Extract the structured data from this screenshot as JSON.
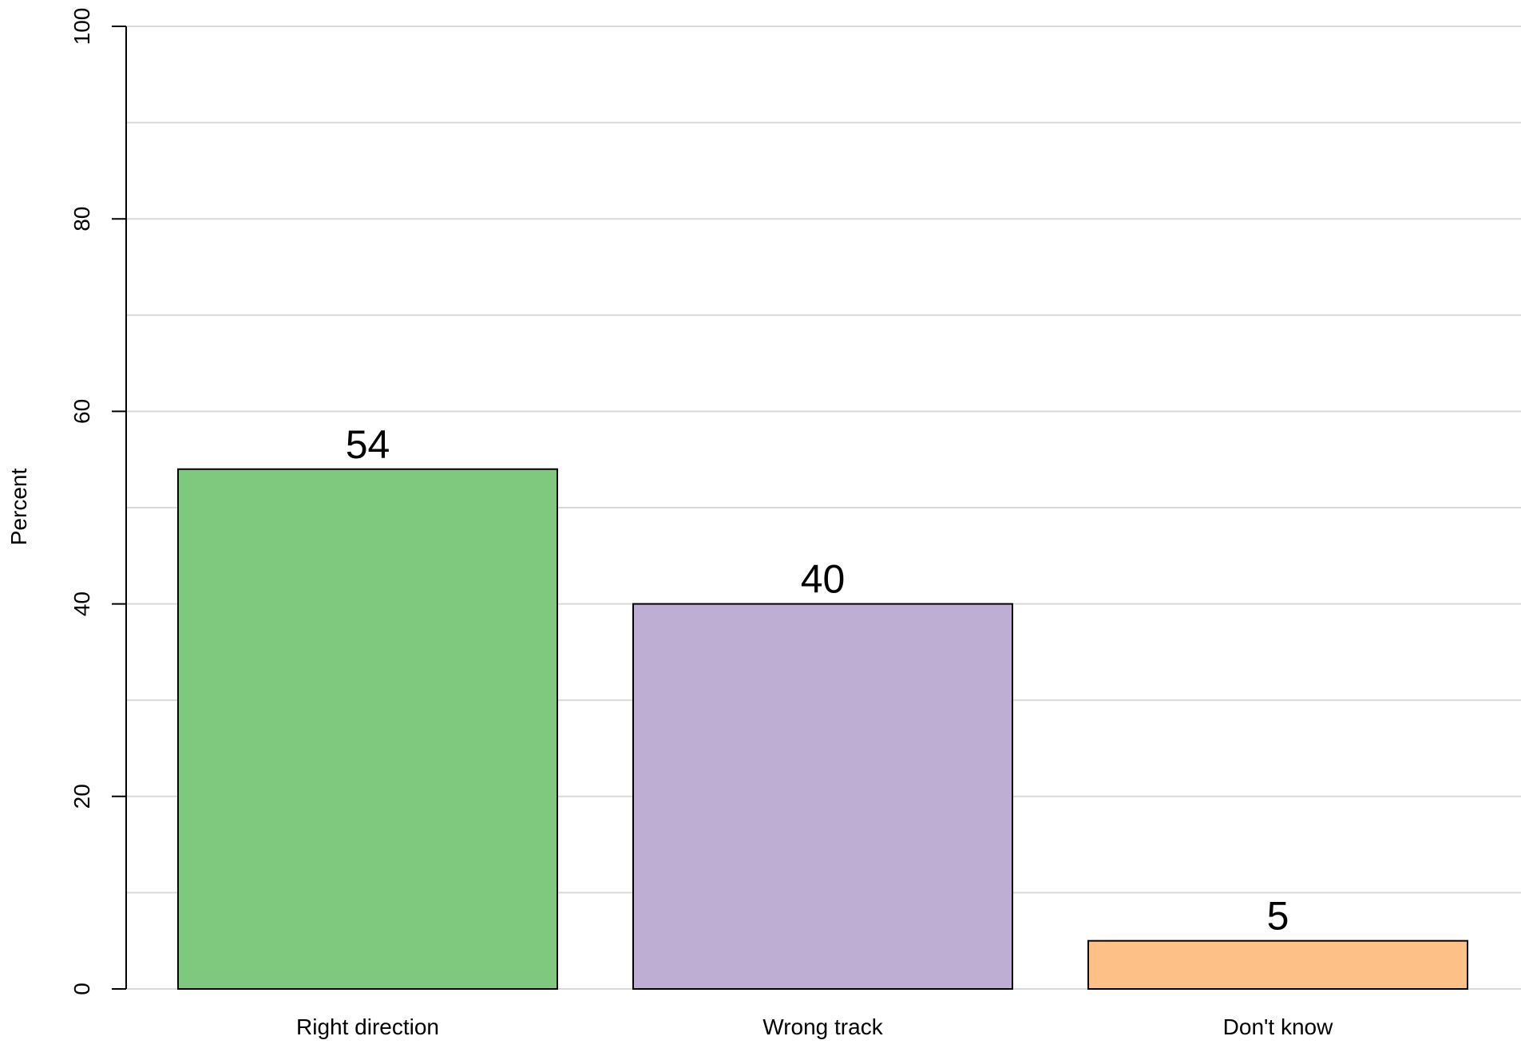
{
  "chart_data": {
    "type": "bar",
    "categories": [
      "Right direction",
      "Wrong track",
      "Don't know"
    ],
    "values": [
      54,
      40,
      5
    ],
    "data_labels": [
      "54",
      "40",
      "5"
    ],
    "colors": [
      "#7fc97f",
      "#beaed4",
      "#fdc086"
    ],
    "title": "",
    "xlabel": "",
    "ylabel": "Percent",
    "ylim": [
      0,
      100
    ],
    "yticks": [
      0,
      20,
      40,
      60,
      80,
      100
    ],
    "yticks_labels": [
      "0",
      "20",
      "40",
      "60",
      "80",
      "100"
    ],
    "grid": true,
    "grid_minor_step": 10
  }
}
